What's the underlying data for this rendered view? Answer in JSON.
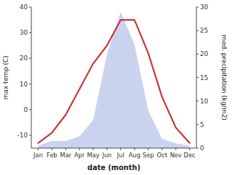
{
  "chart_data": {
    "type": "line",
    "xlabel": "date (month)",
    "ylabel": "max temp (C)",
    "y2label": "med. precipitation (kg/m2)",
    "categories": [
      "Jan",
      "Feb",
      "Mar",
      "Apr",
      "May",
      "Jun",
      "Jul",
      "Aug",
      "Sep",
      "Oct",
      "Nov",
      "Dec"
    ],
    "series": [
      {
        "type": "area",
        "axis": "y2",
        "color": "#b8c4e8",
        "values": [
          0.5,
          1.5,
          1.5,
          2.5,
          6,
          20,
          29,
          22,
          8,
          2,
          1,
          0.5
        ]
      },
      {
        "type": "line",
        "color": "#cc3333",
        "values": [
          -13,
          -9,
          -2,
          8,
          18,
          25,
          35,
          35,
          22,
          5,
          -7,
          -13
        ]
      }
    ],
    "ylim": [
      -15,
      40
    ],
    "yticks": [
      -10,
      0,
      10,
      20,
      30,
      40
    ],
    "y2lim": [
      0,
      30
    ],
    "y2ticks": [
      0,
      5,
      10,
      15,
      20,
      25,
      30
    ],
    "grid": false
  }
}
